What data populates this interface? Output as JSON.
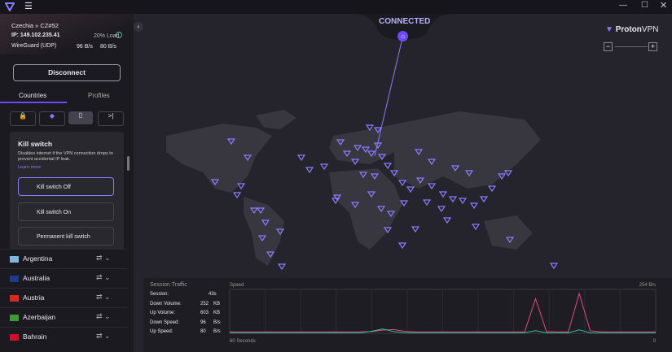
{
  "connection": {
    "server": "Czechia » CZ#52",
    "ip": "IP: 149.102.235.41",
    "load": "20% Load",
    "protocol": "WireGuard (UDP)",
    "down": "96 B/s",
    "up": "80 B/s"
  },
  "disconnect_button": "Disconnect",
  "tabs": [
    "Countries",
    "Profiles"
  ],
  "kill_switch": {
    "title": "Kill switch",
    "description": "Disables internet if the VPN connection drops to prevent accidental IP leak.",
    "learn_more": "Learn more",
    "options": [
      "Kill switch Off",
      "Kill switch On",
      "Permanent kill switch"
    ]
  },
  "countries": [
    "Argentina",
    "Australia",
    "Austria",
    "Azerbaijan",
    "Bahrain"
  ],
  "map": {
    "status": "CONNECTED",
    "logo": "Proton",
    "logo_suffix": "VPN"
  },
  "session_traffic": {
    "title": "Session Traffic",
    "stats": [
      {
        "label": "Session:",
        "value": "43s"
      },
      {
        "label": "Down Volume:",
        "value": "252",
        "unit": "KB"
      },
      {
        "label": "Up Volume:",
        "value": "603",
        "unit": "KB"
      },
      {
        "label": "Down Speed:",
        "value": "96",
        "unit": "B/s"
      },
      {
        "label": "Up Speed:",
        "value": "80",
        "unit": "B/s"
      }
    ]
  },
  "speed_chart": {
    "title": "Speed",
    "ymax": {
      "value": 254,
      "label": "254 B/s"
    },
    "x_start": "60 Seconds",
    "x_end": "0",
    "series": [
      {
        "name": "Download",
        "color": "#e8487c",
        "values": [
          8,
          8,
          8,
          8,
          8,
          8,
          8,
          8,
          8,
          8,
          8,
          8,
          8,
          10,
          18,
          22,
          12,
          8,
          8,
          8,
          8,
          8,
          8,
          8,
          8,
          8,
          8,
          8,
          200,
          10,
          8,
          8,
          230,
          15,
          8,
          8,
          8,
          8,
          8,
          8
        ]
      },
      {
        "name": "Upload",
        "color": "#2fbf8f",
        "values": [
          3,
          3,
          3,
          3,
          3,
          3,
          3,
          3,
          3,
          3,
          3,
          3,
          3,
          12,
          25,
          10,
          3,
          3,
          3,
          3,
          3,
          3,
          3,
          3,
          3,
          3,
          3,
          3,
          15,
          3,
          3,
          3,
          20,
          3,
          3,
          3,
          3,
          3,
          3,
          3
        ]
      }
    ]
  }
}
